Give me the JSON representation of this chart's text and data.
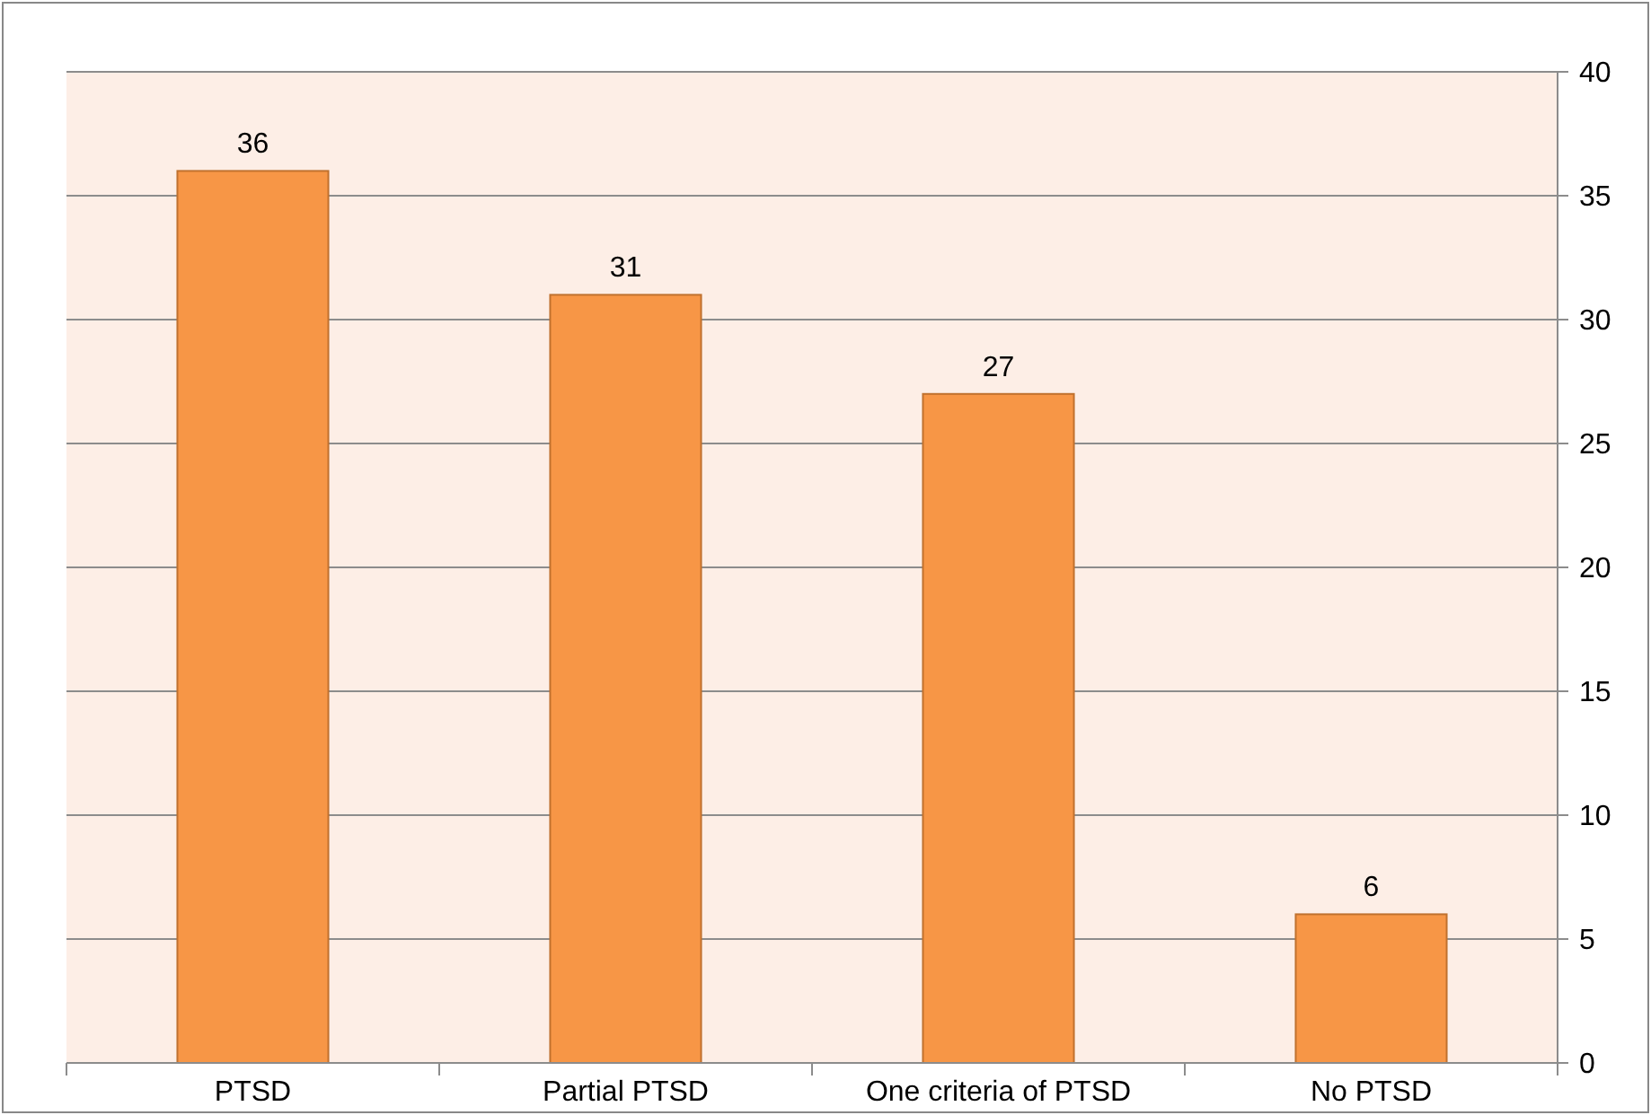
{
  "chart_data": {
    "type": "bar",
    "categories": [
      "PTSD",
      "Partial PTSD",
      "One criteria of PTSD",
      "No PTSD"
    ],
    "values": [
      36,
      31,
      27,
      6
    ],
    "color": "#f79646",
    "ylim": [
      0,
      40
    ],
    "yticks": [
      0,
      5,
      10,
      15,
      20,
      25,
      30,
      35,
      40
    ],
    "grid": "y",
    "data_labels": true
  }
}
